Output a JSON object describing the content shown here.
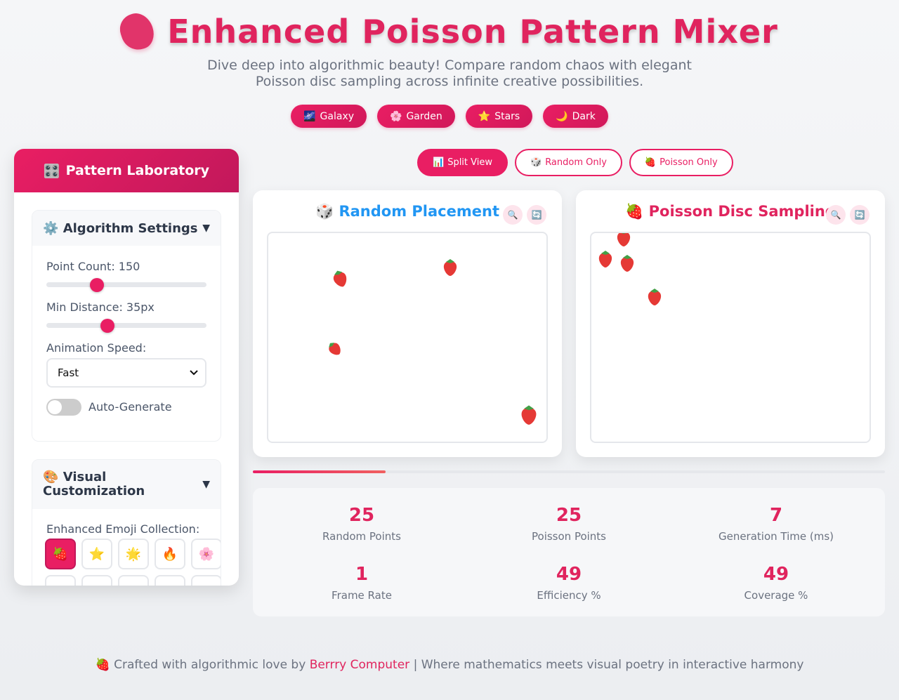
{
  "header": {
    "title": "Enhanced Poisson Pattern Mixer",
    "subtitle_line1": "Dive deep into algorithmic beauty! Compare random chaos with elegant",
    "subtitle_line2": "Poisson disc sampling across infinite creative possibilities."
  },
  "themes": [
    {
      "icon": "🌌",
      "label": "Galaxy"
    },
    {
      "icon": "🌸",
      "label": "Garden"
    },
    {
      "icon": "⭐",
      "label": "Stars"
    },
    {
      "icon": "🌙",
      "label": "Dark"
    }
  ],
  "sidebar": {
    "title_icon": "🎛️",
    "title": "Pattern Laboratory",
    "algorithm": {
      "icon": "⚙️",
      "title": "Algorithm Settings",
      "caret": "▼",
      "point_count_label": "Point Count: 150",
      "point_count_fraction": 0.3,
      "min_distance_label": "Min Distance: 35px",
      "min_distance_fraction": 0.37,
      "animation_label": "Animation Speed:",
      "animation_value": "Fast",
      "auto_label": "Auto-Generate",
      "auto_on": false
    },
    "visual": {
      "icon": "🎨",
      "title_line1": "Visual",
      "title_line2": "Customization",
      "caret": "▼",
      "emoji_label": "Enhanced Emoji Collection:",
      "emojis": [
        "🍓",
        "⭐",
        "🌟",
        "🔥",
        "🌸"
      ]
    }
  },
  "views": [
    {
      "icon": "📊",
      "label": "Split View",
      "active": true
    },
    {
      "icon": "🎲",
      "label": "Random Only",
      "active": false
    },
    {
      "icon": "🍓",
      "label": "Poisson Only",
      "active": false
    }
  ],
  "panels": {
    "random": {
      "icon": "🎲",
      "title": "Random Placement",
      "color": "#2196f3"
    },
    "poisson": {
      "icon": "🍓",
      "title": "Poisson Disc Sampling",
      "color": "#e0245e"
    },
    "zoom_icon": "🔍",
    "refresh_icon": "🔄"
  },
  "progress_fraction": 0.21,
  "stats": [
    {
      "value": "25",
      "label": "Random Points"
    },
    {
      "value": "25",
      "label": "Poisson Points"
    },
    {
      "value": "7",
      "label": "Generation Time (ms)"
    },
    {
      "value": "1",
      "label": "Frame Rate"
    },
    {
      "value": "49",
      "label": "Efficiency %"
    },
    {
      "value": "49",
      "label": "Coverage %"
    }
  ],
  "footer": {
    "icon": "🍓",
    "prefix": "Crafted with algorithmic love by",
    "link": "Berrry Computer",
    "suffix": "| Where mathematics meets visual poetry in interactive harmony"
  }
}
